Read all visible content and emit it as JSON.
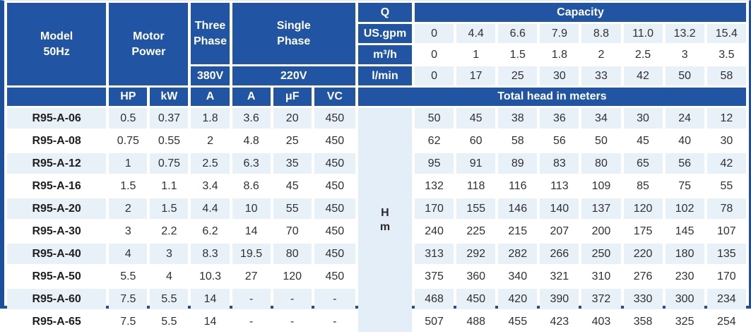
{
  "header": {
    "model": [
      "Model",
      "50Hz"
    ],
    "motor_power": [
      "Motor",
      "Power"
    ],
    "three_phase": [
      "Three",
      "Phase"
    ],
    "single_phase": [
      "Single",
      "Phase"
    ],
    "voltage_three": "380V",
    "voltage_single": "220V",
    "q": "Q",
    "capacity": "Capacity",
    "flow_units": {
      "us_gpm": "US.gpm",
      "m3h": "m³/h",
      "lmin": "l/min"
    },
    "unit_cols": {
      "hp": "HP",
      "kw": "kW",
      "a3": "A",
      "a1": "A",
      "uf": "μF",
      "vc": "VC"
    },
    "total_head": "Total head in meters",
    "head_unit": [
      "H",
      "m"
    ]
  },
  "capacity_values": {
    "us_gpm": [
      "0",
      "4.4",
      "6.6",
      "7.9",
      "8.8",
      "11.0",
      "13.2",
      "15.4"
    ],
    "m3h": [
      "0",
      "1",
      "1.5",
      "1.8",
      "2",
      "2.5",
      "3",
      "3.5"
    ],
    "lmin": [
      "0",
      "17",
      "25",
      "30",
      "33",
      "42",
      "50",
      "58"
    ]
  },
  "rows": [
    {
      "model": "R95-A-06",
      "hp": "0.5",
      "kw": "0.37",
      "a3": "1.8",
      "a1": "3.6",
      "uf": "20",
      "vc": "450",
      "head": [
        "50",
        "45",
        "38",
        "36",
        "34",
        "30",
        "24",
        "12"
      ]
    },
    {
      "model": "R95-A-08",
      "hp": "0.75",
      "kw": "0.55",
      "a3": "2",
      "a1": "4.8",
      "uf": "25",
      "vc": "450",
      "head": [
        "62",
        "60",
        "58",
        "56",
        "50",
        "45",
        "40",
        "30"
      ]
    },
    {
      "model": "R95-A-12",
      "hp": "1",
      "kw": "0.75",
      "a3": "2.5",
      "a1": "6.3",
      "uf": "35",
      "vc": "450",
      "head": [
        "95",
        "91",
        "89",
        "83",
        "80",
        "65",
        "56",
        "42"
      ]
    },
    {
      "model": "R95-A-16",
      "hp": "1.5",
      "kw": "1.1",
      "a3": "3.4",
      "a1": "8.6",
      "uf": "45",
      "vc": "450",
      "head": [
        "132",
        "118",
        "116",
        "113",
        "109",
        "85",
        "75",
        "55"
      ]
    },
    {
      "model": "R95-A-20",
      "hp": "2",
      "kw": "1.5",
      "a3": "4.4",
      "a1": "10",
      "uf": "55",
      "vc": "450",
      "head": [
        "170",
        "155",
        "146",
        "140",
        "137",
        "120",
        "102",
        "78"
      ]
    },
    {
      "model": "R95-A-30",
      "hp": "3",
      "kw": "2.2",
      "a3": "6.2",
      "a1": "14",
      "uf": "70",
      "vc": "450",
      "head": [
        "240",
        "225",
        "215",
        "207",
        "200",
        "175",
        "145",
        "107"
      ]
    },
    {
      "model": "R95-A-40",
      "hp": "4",
      "kw": "3",
      "a3": "8.3",
      "a1": "19.5",
      "uf": "80",
      "vc": "450",
      "head": [
        "313",
        "292",
        "282",
        "266",
        "250",
        "220",
        "180",
        "135"
      ]
    },
    {
      "model": "R95-A-50",
      "hp": "5.5",
      "kw": "4",
      "a3": "10.3",
      "a1": "27",
      "uf": "120",
      "vc": "450",
      "head": [
        "375",
        "360",
        "340",
        "321",
        "310",
        "276",
        "230",
        "170"
      ]
    },
    {
      "model": "R95-A-60",
      "hp": "7.5",
      "kw": "5.5",
      "a3": "14",
      "a1": "-",
      "uf": "-",
      "vc": "-",
      "head": [
        "468",
        "450",
        "420",
        "390",
        "372",
        "330",
        "300",
        "234"
      ]
    },
    {
      "model": "R95-A-65",
      "hp": "7.5",
      "kw": "5.5",
      "a3": "14",
      "a1": "-",
      "uf": "-",
      "vc": "-",
      "head": [
        "507",
        "488",
        "455",
        "423",
        "403",
        "358",
        "325",
        "254"
      ]
    }
  ],
  "colors": {
    "header_blue": "#2154a3",
    "row_alt_blue": "#e8f0f8",
    "border_blue": "#1b4e9b",
    "text": "#303030"
  }
}
